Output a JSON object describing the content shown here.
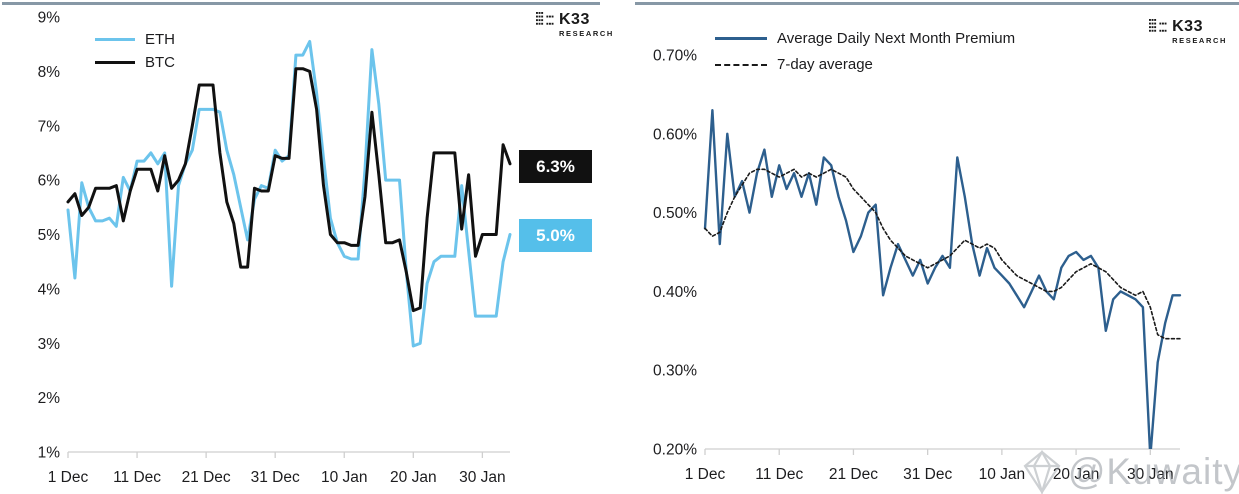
{
  "logo": {
    "brand": "K33",
    "sub": "RESEARCH"
  },
  "watermark": {
    "text": "@Kuwaity",
    "icon": "diamond-gem"
  },
  "chart_data": [
    {
      "type": "line",
      "title": "",
      "xlabel": "",
      "ylabel": "",
      "ylim": [
        1,
        9
      ],
      "grid": false,
      "legend_position": "top-left",
      "x_ticks": [
        "1 Dec",
        "11 Dec",
        "21 Dec",
        "31 Dec",
        "10 Jan",
        "20 Jan",
        "30 Jan"
      ],
      "x_tick_indices": [
        0,
        10,
        20,
        30,
        40,
        50,
        60
      ],
      "y_ticks": [
        "9%",
        "8%",
        "7%",
        "6%",
        "5%",
        "4%",
        "3%",
        "2%",
        "1%"
      ],
      "y_tick_values": [
        9,
        8,
        7,
        6,
        5,
        4,
        3,
        2,
        1
      ],
      "legend": [
        {
          "label": "ETH",
          "color": "#6cc4ec",
          "style": "solid"
        },
        {
          "label": "BTC",
          "color": "#111111",
          "style": "solid"
        }
      ],
      "end_labels": [
        {
          "text": "6.3%",
          "bg": "#111111",
          "color": "#ffffff"
        },
        {
          "text": "5.0%",
          "bg": "#55bfea",
          "color": "#ffffff"
        }
      ],
      "series": [
        {
          "name": "ETH",
          "color": "#6cc4ec",
          "style": "solid",
          "values": [
            5.45,
            4.2,
            5.95,
            5.5,
            5.25,
            5.25,
            5.3,
            5.15,
            6.05,
            5.8,
            6.35,
            6.35,
            6.5,
            6.3,
            6.5,
            4.05,
            5.9,
            6.3,
            6.55,
            7.3,
            7.3,
            7.3,
            7.25,
            6.55,
            6.1,
            5.5,
            4.9,
            5.65,
            5.9,
            5.85,
            6.55,
            6.35,
            6.45,
            8.3,
            8.3,
            8.55,
            7.6,
            6.4,
            5.3,
            4.85,
            4.6,
            4.55,
            4.55,
            6.2,
            8.4,
            7.4,
            6.0,
            6.0,
            6.0,
            4.3,
            2.95,
            3.0,
            4.1,
            4.5,
            4.6,
            4.6,
            4.6,
            5.9,
            4.7,
            3.5,
            3.5,
            3.5,
            3.5,
            4.5,
            5.0
          ]
        },
        {
          "name": "BTC",
          "color": "#111111",
          "style": "solid",
          "values": [
            5.6,
            5.75,
            5.35,
            5.5,
            5.85,
            5.85,
            5.85,
            5.9,
            5.25,
            5.8,
            6.2,
            6.2,
            6.2,
            5.8,
            6.45,
            5.85,
            6.0,
            6.3,
            7.0,
            7.75,
            7.75,
            7.75,
            6.5,
            5.6,
            5.2,
            4.4,
            4.4,
            5.85,
            5.8,
            5.8,
            6.45,
            6.4,
            6.4,
            8.05,
            8.05,
            8.0,
            7.3,
            5.9,
            5.0,
            4.85,
            4.85,
            4.8,
            4.8,
            5.7,
            7.25,
            6.1,
            4.85,
            4.85,
            4.9,
            4.3,
            3.6,
            3.65,
            5.3,
            6.5,
            6.5,
            6.5,
            6.5,
            5.1,
            6.1,
            4.6,
            5.0,
            5.0,
            5.0,
            6.65,
            6.3
          ]
        }
      ]
    },
    {
      "type": "line",
      "title": "",
      "xlabel": "",
      "ylabel": "",
      "ylim": [
        0.2,
        0.7
      ],
      "grid": false,
      "legend_position": "top-left",
      "x_ticks": [
        "1 Dec",
        "11 Dec",
        "21 Dec",
        "31 Dec",
        "10 Jan",
        "20 Jan",
        "30 Jan"
      ],
      "x_tick_indices": [
        0,
        10,
        20,
        30,
        40,
        50,
        60
      ],
      "y_ticks": [
        "0.70%",
        "0.60%",
        "0.50%",
        "0.40%",
        "0.30%",
        "0.20%"
      ],
      "y_tick_values": [
        0.7,
        0.6,
        0.5,
        0.4,
        0.3,
        0.2
      ],
      "legend": [
        {
          "label": "Average Daily Next Month Premium",
          "color": "#2d5f8e",
          "style": "solid"
        },
        {
          "label": "7-day average",
          "color": "#1a1a1a",
          "style": "dashed"
        }
      ],
      "end_labels": [],
      "series": [
        {
          "name": "Average Daily Next Month Premium",
          "color": "#2d5f8e",
          "style": "solid",
          "values": [
            0.48,
            0.63,
            0.46,
            0.6,
            0.52,
            0.54,
            0.5,
            0.55,
            0.58,
            0.52,
            0.56,
            0.53,
            0.55,
            0.52,
            0.55,
            0.51,
            0.57,
            0.56,
            0.52,
            0.49,
            0.45,
            0.47,
            0.5,
            0.51,
            0.395,
            0.43,
            0.46,
            0.44,
            0.42,
            0.44,
            0.41,
            0.43,
            0.445,
            0.43,
            0.57,
            0.52,
            0.46,
            0.42,
            0.455,
            0.43,
            0.42,
            0.41,
            0.395,
            0.38,
            0.4,
            0.42,
            0.4,
            0.39,
            0.43,
            0.445,
            0.45,
            0.44,
            0.445,
            0.43,
            0.35,
            0.39,
            0.4,
            0.395,
            0.39,
            0.38,
            0.19,
            0.31,
            0.36,
            0.395,
            0.395
          ]
        },
        {
          "name": "7-day average",
          "color": "#1a1a1a",
          "style": "dashed",
          "values": [
            0.48,
            0.47,
            0.475,
            0.5,
            0.52,
            0.535,
            0.55,
            0.555,
            0.555,
            0.55,
            0.545,
            0.55,
            0.555,
            0.545,
            0.55,
            0.545,
            0.55,
            0.555,
            0.55,
            0.545,
            0.53,
            0.52,
            0.51,
            0.5,
            0.48,
            0.465,
            0.455,
            0.445,
            0.44,
            0.435,
            0.43,
            0.435,
            0.44,
            0.445,
            0.455,
            0.465,
            0.46,
            0.455,
            0.46,
            0.455,
            0.44,
            0.43,
            0.42,
            0.415,
            0.41,
            0.405,
            0.4,
            0.4,
            0.405,
            0.415,
            0.425,
            0.43,
            0.435,
            0.43,
            0.425,
            0.415,
            0.405,
            0.4,
            0.395,
            0.4,
            0.38,
            0.345,
            0.34,
            0.34,
            0.34
          ]
        }
      ]
    }
  ]
}
